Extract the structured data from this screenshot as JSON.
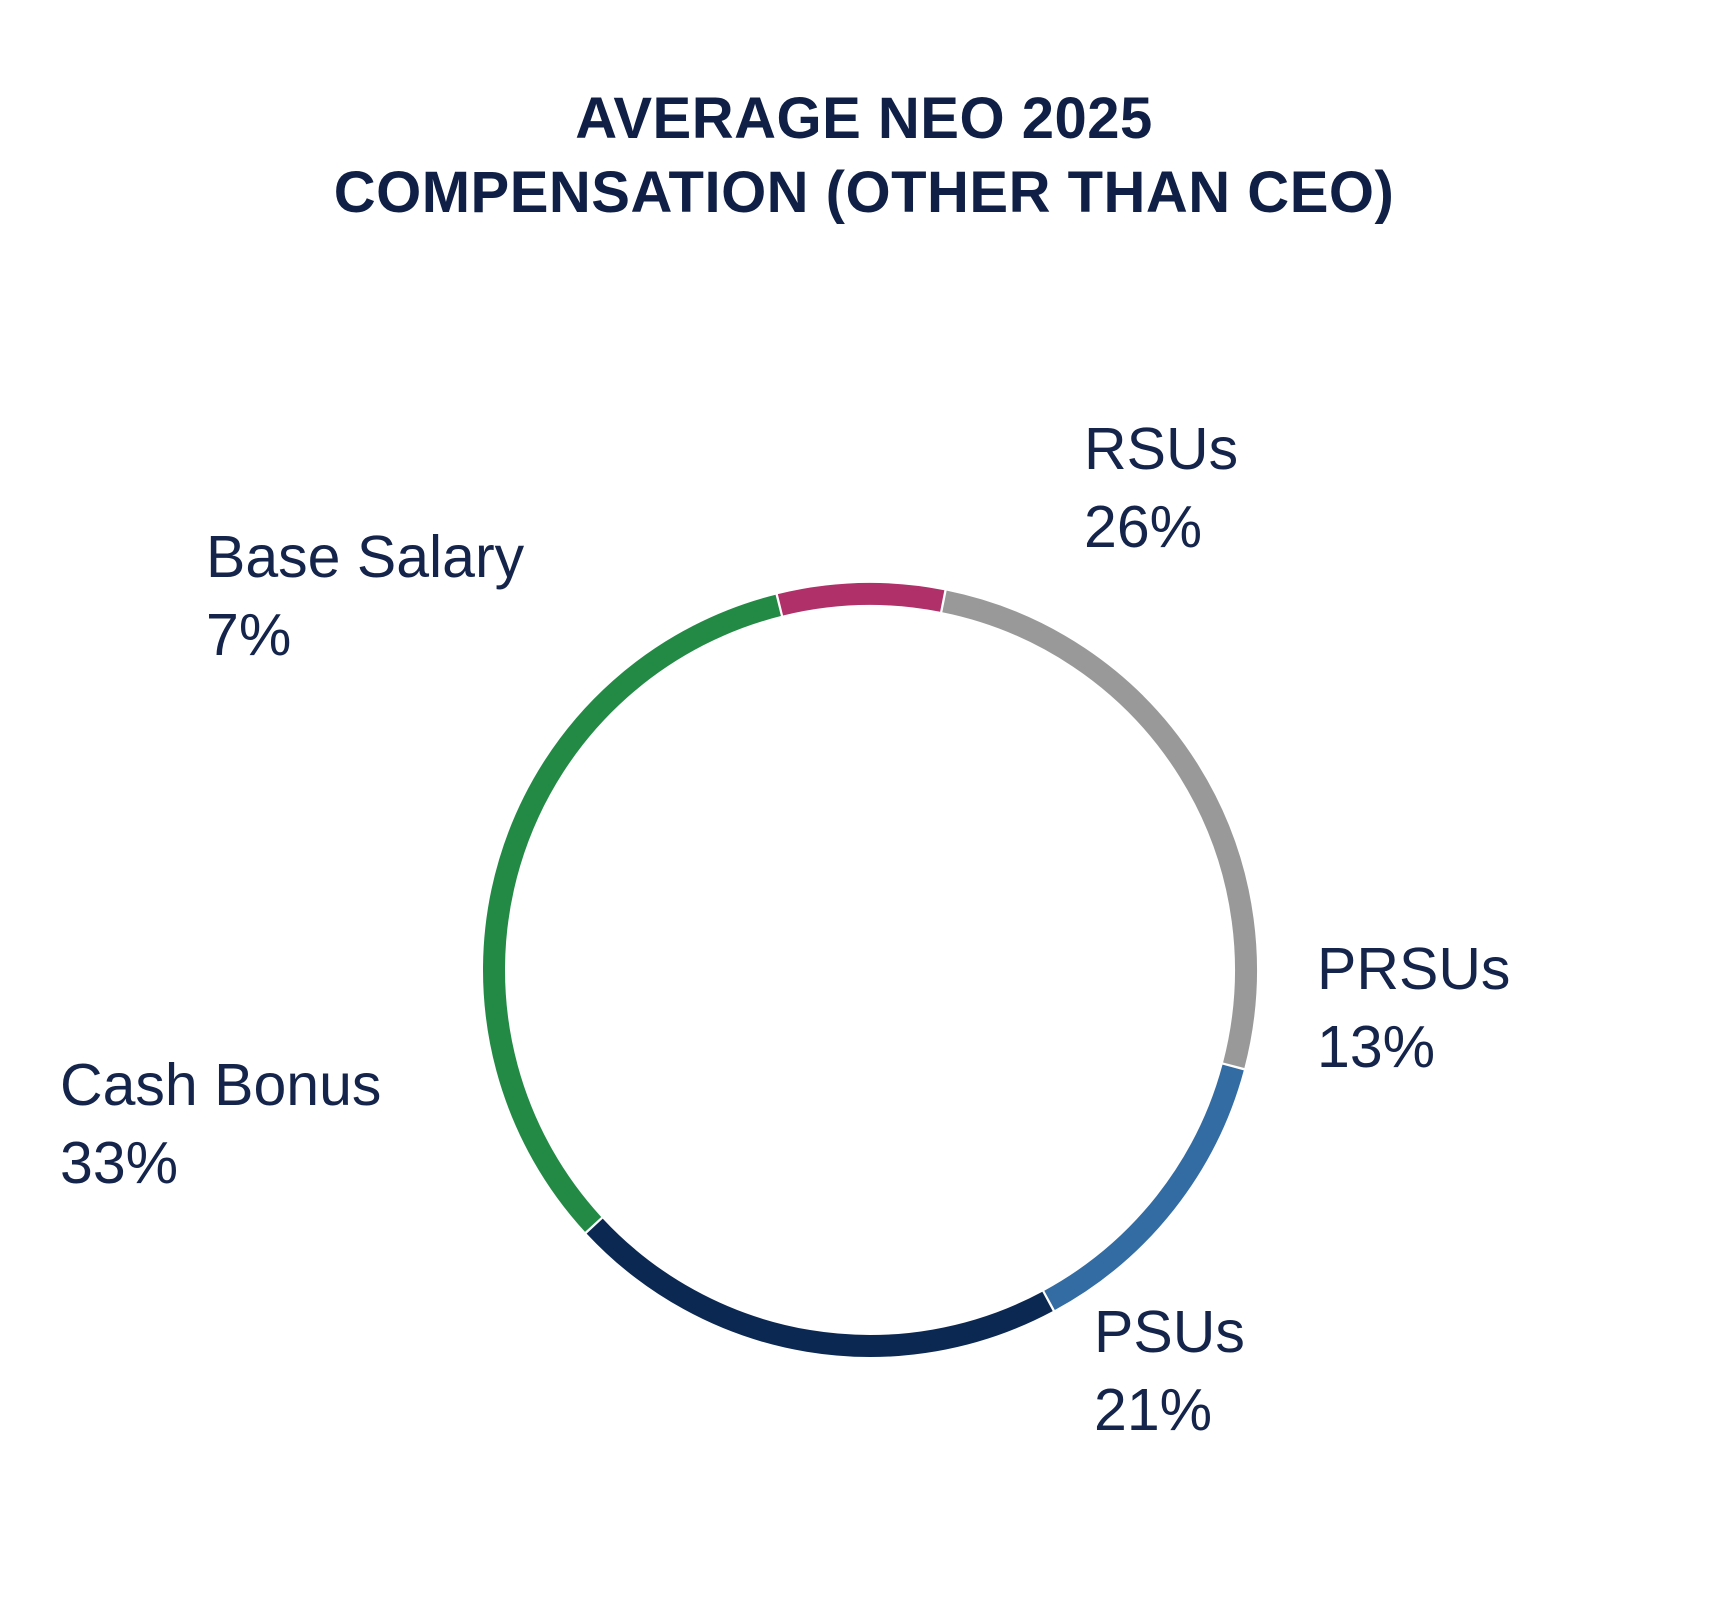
{
  "chart_data": {
    "type": "pie",
    "variant": "donut-ring",
    "title_lines": [
      "AVERAGE NEO 2025",
      "COMPENSATION (OTHER THAN CEO)"
    ],
    "slices": [
      {
        "name": "RSUs",
        "value": 26,
        "value_label": "26%",
        "color": "#999999"
      },
      {
        "name": "PRSUs",
        "value": 13,
        "value_label": "13%",
        "color": "#336ba3"
      },
      {
        "name": "PSUs",
        "value": 21,
        "value_label": "21%",
        "color": "#0b2852"
      },
      {
        "name": "Cash Bonus",
        "value": 33,
        "value_label": "33%",
        "color": "#238a45"
      },
      {
        "name": "Base Salary",
        "value": 7,
        "value_label": "7%",
        "color": "#b03069"
      }
    ],
    "legend": "none",
    "label_color": "#14244a"
  }
}
